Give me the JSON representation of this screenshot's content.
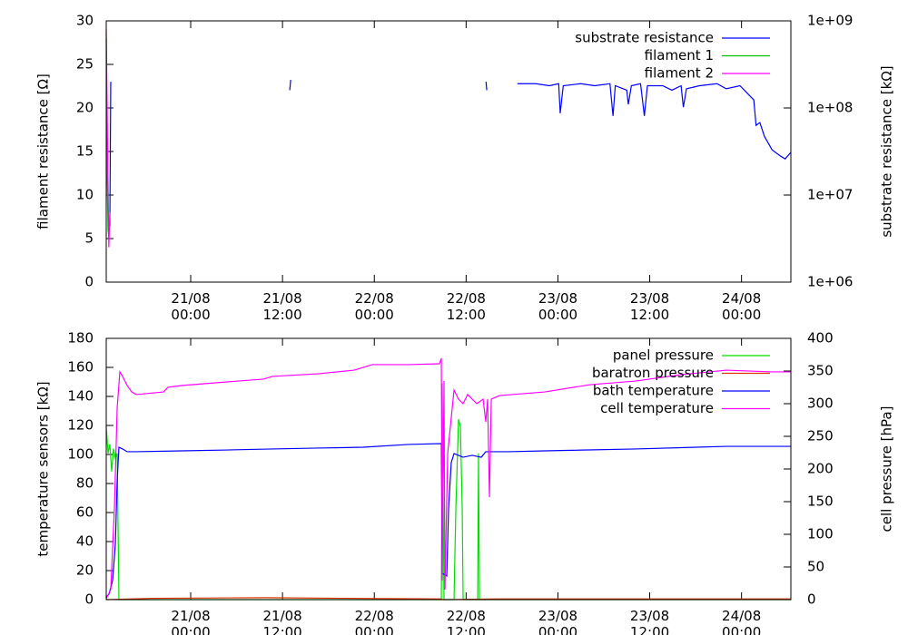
{
  "chart_data": [
    {
      "type": "line",
      "ylabel": "filament resistance [Ω]",
      "y2label": "substrate resistance [kΩ]",
      "legend": "top right",
      "xlim": [
        -11.04,
        78.45
      ],
      "xticks": [
        {
          "value": 0,
          "label": "21/08\n00:00"
        },
        {
          "value": 12,
          "label": "21/08\n12:00"
        },
        {
          "value": 24,
          "label": "22/08\n00:00"
        },
        {
          "value": 36,
          "label": "22/08\n12:00"
        },
        {
          "value": 48,
          "label": "23/08\n00:00"
        },
        {
          "value": 60,
          "label": "23/08\n12:00"
        },
        {
          "value": 72,
          "label": "24/08\n00:00"
        }
      ],
      "ylim": [
        0,
        30
      ],
      "yticks": [
        0,
        5,
        10,
        15,
        20,
        25,
        30
      ],
      "y2lim": [
        1000000,
        1000000000
      ],
      "y2scale": "log",
      "y2ticks": [
        {
          "value": 1000000,
          "label": "1e+06"
        },
        {
          "value": 10000000,
          "label": "1e+07"
        },
        {
          "value": 100000000,
          "label": "1e+08"
        },
        {
          "value": 1000000000,
          "label": "1e+09"
        }
      ],
      "series": [
        {
          "name": "substrate resistance",
          "color": "#0000ff",
          "axis": "y2",
          "x": [
            -10.57,
            -10.45,
            null,
            12.95,
            13.07,
            null,
            38.6,
            38.7,
            null,
            42.7,
            45.1,
            46.9,
            48.1,
            48.3,
            48.7,
            51.0,
            52.8,
            54.8,
            55.2,
            55.5,
            57.0,
            57.2,
            57.6,
            58.8,
            59.3,
            59.7,
            61.7,
            62.9,
            64.1,
            64.4,
            64.8,
            66.5,
            68.8,
            70.0,
            71.8,
            73.0,
            73.6,
            73.9,
            74.4,
            75.0,
            76.0,
            77.1,
            77.7,
            78.45
          ],
          "values": [
            4400000,
            200000000,
            null,
            160000000,
            210000000,
            null,
            200000000,
            160000000,
            null,
            190000000,
            190000000,
            180000000,
            190000000,
            87000000,
            180000000,
            190000000,
            180000000,
            190000000,
            81000000,
            180000000,
            160000000,
            110000000,
            180000000,
            190000000,
            81000000,
            180000000,
            180000000,
            160000000,
            180000000,
            102000000,
            166000000,
            180000000,
            190000000,
            166000000,
            180000000,
            140000000,
            124000000,
            63000000,
            68000000,
            47000000,
            33000000,
            28000000,
            26000000,
            31000000
          ]
        },
        {
          "name": "filament 1",
          "color": "#00c000",
          "axis": "y",
          "x": [
            -11.04,
            -10.92,
            -10.8,
            -10.68
          ],
          "values": [
            28,
            12,
            6,
            5
          ]
        },
        {
          "name": "filament 2",
          "color": "#ff00ff",
          "axis": "y",
          "x": [
            -11.04,
            -10.86,
            -10.7,
            -10.57
          ],
          "values": [
            29,
            15,
            4,
            8
          ]
        }
      ]
    },
    {
      "type": "line",
      "ylabel": "temperature sensors [kΩ]",
      "y2label": "cell pressure [hPa]",
      "legend": "top right",
      "xlim": [
        -11.04,
        78.45
      ],
      "xticks": [
        {
          "value": 0,
          "label": "21/08\n00:00"
        },
        {
          "value": 12,
          "label": "21/08\n12:00"
        },
        {
          "value": 24,
          "label": "22/08\n00:00"
        },
        {
          "value": 36,
          "label": "22/08\n12:00"
        },
        {
          "value": 48,
          "label": "23/08\n00:00"
        },
        {
          "value": 60,
          "label": "23/08\n12:00"
        },
        {
          "value": 72,
          "label": "24/08\n00:00"
        }
      ],
      "ylim": [
        0,
        180
      ],
      "yticks": [
        0,
        20,
        40,
        60,
        80,
        100,
        120,
        140,
        160,
        180
      ],
      "y2lim": [
        0,
        400
      ],
      "y2ticks": [
        0,
        50,
        100,
        150,
        200,
        250,
        300,
        350,
        400
      ],
      "series": [
        {
          "name": "panel pressure",
          "color": "#00e000",
          "axis": "y2",
          "x": [
            -11.04,
            -10.8,
            -10.57,
            -10.33,
            -10.09,
            -9.85,
            -9.61,
            -9.38,
            32.76,
            32.88,
            33.11,
            34.42,
            34.66,
            35.01,
            35.25,
            35.49,
            35.61,
            37.51,
            37.62,
            37.74,
            78.45
          ],
          "values": [
            265,
            224,
            238,
            196,
            231,
            217,
            224,
            0,
            0,
            331,
            0,
            0,
            140,
            276,
            265,
            140,
            0,
            0,
            224,
            0,
            0
          ]
        },
        {
          "name": "baratron pressure",
          "color": "#e03000",
          "axis": "y2",
          "x": [
            -11.04,
            -5,
            10,
            20,
            32.7,
            33,
            40,
            78.45
          ],
          "values": [
            0,
            2,
            3,
            2,
            1,
            0,
            1,
            1
          ]
        },
        {
          "name": "bath temperature",
          "color": "#0000ff",
          "axis": "y",
          "x": [
            -11.04,
            -10.68,
            -10.21,
            -9.85,
            -9.61,
            -9.38,
            -8.9,
            -8.31,
            -7.12,
            -1.19,
            4.75,
            10.68,
            16.62,
            22.55,
            28.49,
            32.76,
            32.88,
            33.47,
            33.71,
            34.06,
            34.42,
            35.01,
            35.61,
            36.79,
            37.98,
            38.57,
            41.54,
            46.29,
            58.16,
            70.03,
            78.45
          ],
          "values": [
            1.9,
            3.8,
            13.1,
            38.1,
            81.9,
            105,
            103.8,
            101.9,
            101.9,
            102.5,
            103.1,
            103.8,
            104.4,
            105,
            106.9,
            107.5,
            18.1,
            16.3,
            63.1,
            94.4,
            100.6,
            99.4,
            98.1,
            99.4,
            98.1,
            101.9,
            101.9,
            102.5,
            103.8,
            105.6,
            105.6
          ]
        },
        {
          "name": "cell temperature",
          "color": "#ff00ff",
          "axis": "y",
          "x": [
            -11.04,
            -10.45,
            -9.97,
            -9.61,
            -9.26,
            -8.9,
            -8.31,
            -7.71,
            -7.12,
            -3.56,
            -2.97,
            -1.19,
            4.75,
            9.5,
            10.68,
            16.62,
            21.36,
            23.74,
            28.49,
            32.52,
            32.76,
            32.88,
            33.11,
            33.23,
            33.59,
            34.42,
            35.01,
            35.61,
            36.2,
            37.39,
            38.22,
            38.57,
            38.81,
            39.05,
            39.29,
            40.35,
            46.29,
            52.22,
            58.16,
            64.09,
            70.03,
            75.96,
            78.45
          ],
          "values": [
            0.6,
            6.9,
            63.1,
            131.9,
            156.9,
            153.8,
            147.5,
            143.1,
            141.3,
            143.1,
            146.3,
            147.5,
            150,
            151.9,
            153.8,
            155.6,
            158.1,
            161.9,
            161.9,
            162.5,
            166.3,
            13.1,
            150.6,
            6.9,
            100.6,
            144.4,
            138.1,
            135,
            141.3,
            135,
            138.1,
            122.5,
            138.1,
            70.6,
            138.1,
            140.6,
            143.1,
            148.1,
            150.6,
            155,
            158.1,
            156.9,
            156.9
          ]
        }
      ]
    }
  ]
}
